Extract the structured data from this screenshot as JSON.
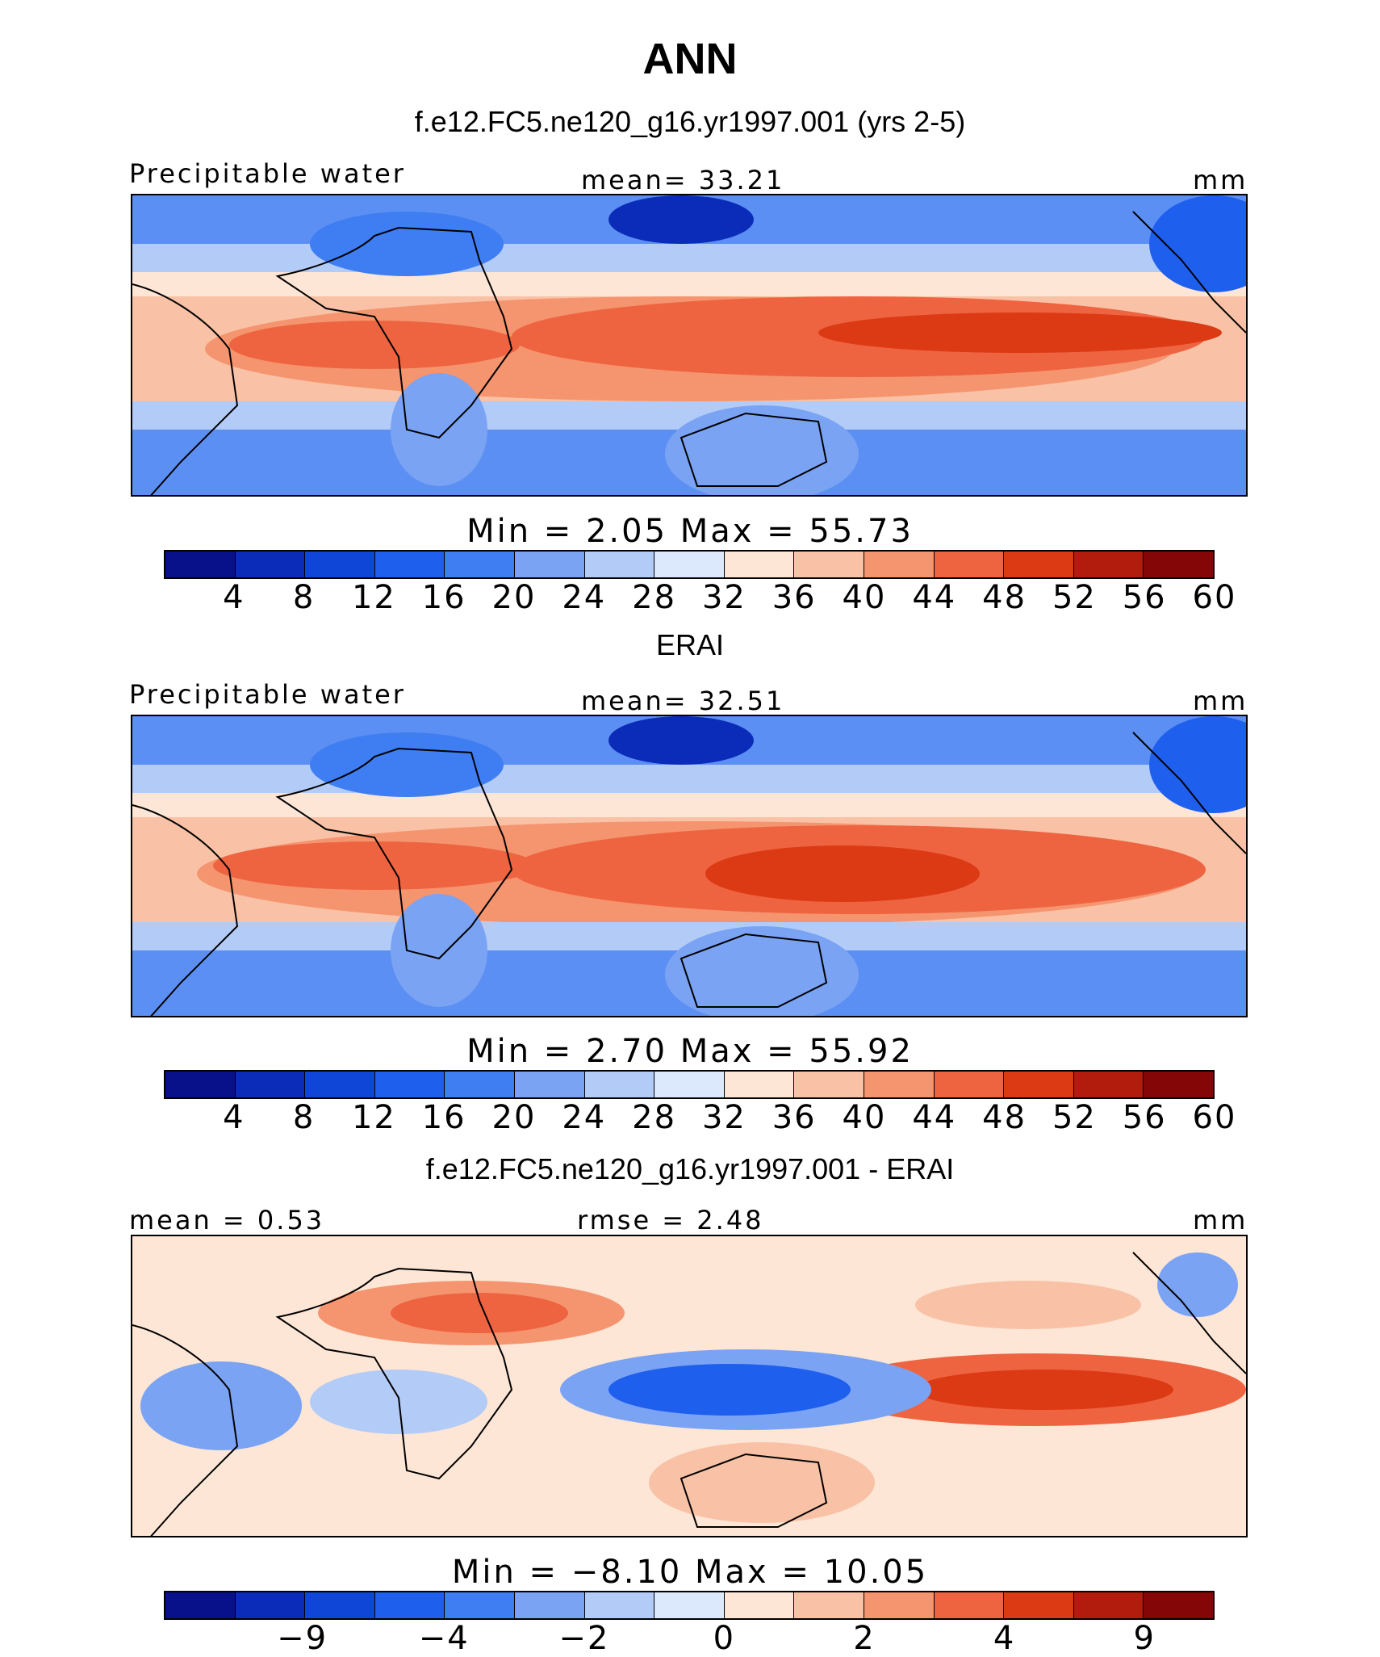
{
  "title": "ANN",
  "panels": [
    {
      "title": "f.e12.FC5.ne120_g16.yr1997.001 (yrs 2-5)",
      "left_label": "Precipitable water",
      "center_label": "mean=   33.21",
      "units": "mm",
      "minmax": "Min  =     2.05  Max  =    55.73",
      "ticks": [
        "4",
        "8",
        "12",
        "16",
        "20",
        "24",
        "28",
        "32",
        "36",
        "40",
        "44",
        "48",
        "52",
        "56",
        "60"
      ],
      "colors": [
        "#08108a",
        "#0a2cb8",
        "#0f46d8",
        "#1f5fee",
        "#3f7ef2",
        "#7aa3f4",
        "#b3cbf7",
        "#dce8fb",
        "#fde6d6",
        "#f9c2a6",
        "#f5956f",
        "#ef6440",
        "#dc3a14",
        "#b21c0c",
        "#850606"
      ]
    },
    {
      "title": "ERAI",
      "left_label": "Precipitable water",
      "center_label": "mean=   32.51",
      "units": "mm",
      "minmax": "Min  =     2.70  Max  =    55.92",
      "ticks": [
        "4",
        "8",
        "12",
        "16",
        "20",
        "24",
        "28",
        "32",
        "36",
        "40",
        "44",
        "48",
        "52",
        "56",
        "60"
      ],
      "colors": [
        "#08108a",
        "#0a2cb8",
        "#0f46d8",
        "#1f5fee",
        "#3f7ef2",
        "#7aa3f4",
        "#b3cbf7",
        "#dce8fb",
        "#fde6d6",
        "#f9c2a6",
        "#f5956f",
        "#ef6440",
        "#dc3a14",
        "#b21c0c",
        "#850606"
      ]
    },
    {
      "title": "f.e12.FC5.ne120_g16.yr1997.001 - ERAI",
      "left_label": "mean =    0.53",
      "center_label": "rmse =    2.48",
      "units": "mm",
      "minmax": "Min  =   −8.10  Max  =    10.05",
      "ticks": [
        "−9",
        "−4",
        "−2",
        "0",
        "2",
        "4",
        "9"
      ],
      "colors": [
        "#08108a",
        "#0a2cb8",
        "#0f46d8",
        "#1f5fee",
        "#3f7ef2",
        "#7aa3f4",
        "#b3cbf7",
        "#dce8fb",
        "#fde6d6",
        "#f9c2a6",
        "#f5956f",
        "#ef6440",
        "#dc3a14",
        "#b21c0c",
        "#850606"
      ]
    }
  ]
}
